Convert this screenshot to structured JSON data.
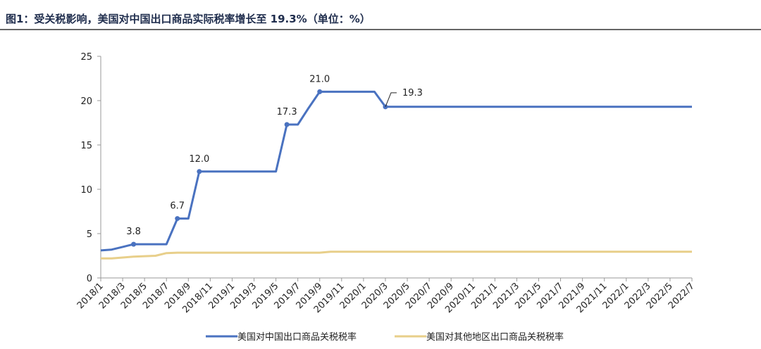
{
  "chart_data": {
    "type": "line",
    "title": "图1：受关税影响，美国对中国出口商品实际税率增长至 19.3%（单位：%）",
    "categories": [
      "2018/1",
      null,
      "2018/3",
      null,
      "2018/5",
      null,
      "2018/7",
      null,
      "2018/9",
      null,
      "2018/11",
      null,
      "2019/1",
      null,
      "2019/3",
      null,
      "2019/5",
      null,
      "2019/7",
      null,
      "2019/9",
      null,
      "2019/11",
      null,
      "2020/1",
      null,
      "2020/3",
      null,
      "2020/5",
      null,
      "2020/7",
      null,
      "2020/9",
      null,
      "2020/11",
      null,
      "2021/1",
      null,
      "2021/3",
      null,
      "2021/5",
      null,
      "2021/7",
      null,
      "2021/9",
      null,
      "2021/11",
      null,
      "2022/1",
      null,
      "2022/3",
      null,
      "2022/5",
      null,
      "2022/7"
    ],
    "series": [
      {
        "name": "美国对中国出口商品关税税率",
        "color": "#4a72c0",
        "values": [
          3.1,
          3.2,
          3.5,
          3.8,
          3.8,
          3.8,
          3.8,
          6.7,
          6.7,
          12.0,
          12,
          12,
          12,
          12,
          12,
          12,
          12,
          17.3,
          17.3,
          19.2,
          21,
          21,
          21,
          21,
          21,
          21,
          19.3,
          19.3,
          19.3,
          19.3,
          19.3,
          19.3,
          19.3,
          19.3,
          19.3,
          19.3,
          19.3,
          19.3,
          19.3,
          19.3,
          19.3,
          19.3,
          19.3,
          19.3,
          19.3,
          19.3,
          19.3,
          19.3,
          19.3,
          19.3,
          19.3,
          19.3,
          19.3,
          19.3,
          19.3
        ],
        "value_labels": [
          null,
          null,
          null,
          "3.8",
          null,
          null,
          null,
          "6.7",
          null,
          "12.0",
          null,
          null,
          null,
          null,
          null,
          null,
          null,
          "17.3",
          null,
          null,
          "21.0",
          null,
          null,
          null,
          null,
          null,
          "19.3",
          null,
          null,
          null,
          null,
          null,
          null,
          null,
          null,
          null,
          null,
          null,
          null,
          null,
          null,
          null,
          null,
          null,
          null,
          null,
          null,
          null,
          null,
          null,
          null,
          null,
          null,
          null,
          null
        ]
      },
      {
        "name": "美国对其他地区出口商品关税税率",
        "color": "#e8cf8a",
        "values": [
          2.2,
          2.2,
          2.3,
          2.4,
          2.45,
          2.5,
          2.8,
          2.85,
          2.85,
          2.85,
          2.85,
          2.85,
          2.85,
          2.85,
          2.85,
          2.85,
          2.85,
          2.85,
          2.85,
          2.85,
          2.85,
          2.95,
          2.95,
          2.95,
          2.95,
          2.95,
          2.95,
          2.95,
          2.95,
          2.95,
          2.95,
          2.95,
          2.95,
          2.95,
          2.95,
          2.95,
          2.95,
          2.95,
          2.95,
          2.95,
          2.95,
          2.95,
          2.95,
          2.95,
          2.95,
          2.95,
          2.95,
          2.95,
          2.95,
          2.95,
          2.95,
          2.95,
          2.95,
          2.95,
          2.95
        ]
      }
    ],
    "ylim": [
      0,
      25
    ],
    "yticks": [
      0,
      5,
      10,
      15,
      20,
      25
    ]
  }
}
